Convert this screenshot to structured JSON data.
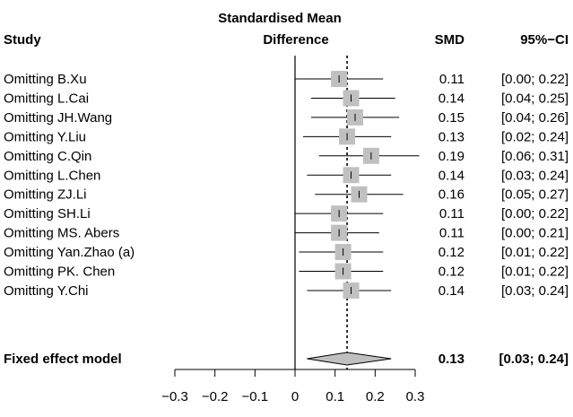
{
  "chart_data": {
    "type": "forest",
    "header": {
      "study": "Study",
      "effect_line1": "Standardised Mean",
      "effect_line2": "Difference",
      "smd": "SMD",
      "ci": "95%−CI"
    },
    "studies": [
      {
        "label": "Omitting B.Xu",
        "smd": 0.11,
        "lower": 0.0,
        "upper": 0.22,
        "smd_text": "0.11",
        "ci_text": "[0.00; 0.22]"
      },
      {
        "label": "Omitting L.Cai",
        "smd": 0.14,
        "lower": 0.04,
        "upper": 0.25,
        "smd_text": "0.14",
        "ci_text": "[0.04; 0.25]"
      },
      {
        "label": "Omitting JH.Wang",
        "smd": 0.15,
        "lower": 0.04,
        "upper": 0.26,
        "smd_text": "0.15",
        "ci_text": "[0.04; 0.26]"
      },
      {
        "label": "Omitting Y.Liu",
        "smd": 0.13,
        "lower": 0.02,
        "upper": 0.24,
        "smd_text": "0.13",
        "ci_text": "[0.02; 0.24]"
      },
      {
        "label": "Omitting C.Qin",
        "smd": 0.19,
        "lower": 0.06,
        "upper": 0.31,
        "smd_text": "0.19",
        "ci_text": "[0.06; 0.31]"
      },
      {
        "label": "Omitting L.Chen",
        "smd": 0.14,
        "lower": 0.03,
        "upper": 0.24,
        "smd_text": "0.14",
        "ci_text": "[0.03; 0.24]"
      },
      {
        "label": "Omitting ZJ.Li",
        "smd": 0.16,
        "lower": 0.05,
        "upper": 0.27,
        "smd_text": "0.16",
        "ci_text": "[0.05; 0.27]"
      },
      {
        "label": "Omitting SH.Li",
        "smd": 0.11,
        "lower": 0.0,
        "upper": 0.22,
        "smd_text": "0.11",
        "ci_text": "[0.00; 0.22]"
      },
      {
        "label": "Omitting MS. Abers",
        "smd": 0.11,
        "lower": 0.0,
        "upper": 0.21,
        "smd_text": "0.11",
        "ci_text": "[0.00; 0.21]"
      },
      {
        "label": "Omitting Yan.Zhao (a)",
        "smd": 0.12,
        "lower": 0.01,
        "upper": 0.22,
        "smd_text": "0.12",
        "ci_text": "[0.01; 0.22]"
      },
      {
        "label": "Omitting PK. Chen",
        "smd": 0.12,
        "lower": 0.01,
        "upper": 0.22,
        "smd_text": "0.12",
        "ci_text": "[0.01; 0.22]"
      },
      {
        "label": "Omitting Y.Chi",
        "smd": 0.14,
        "lower": 0.03,
        "upper": 0.24,
        "smd_text": "0.14",
        "ci_text": "[0.03; 0.24]"
      }
    ],
    "pooled": {
      "label": "Fixed effect model",
      "smd": 0.13,
      "lower": 0.03,
      "upper": 0.24,
      "smd_text": "0.13",
      "ci_text": "[0.03; 0.24]"
    },
    "x_ticks": [
      {
        "value": -0.3,
        "label": "−0.3"
      },
      {
        "value": -0.2,
        "label": "−0.2"
      },
      {
        "value": -0.1,
        "label": "−0.1"
      },
      {
        "value": 0,
        "label": "0"
      },
      {
        "value": 0.1,
        "label": "0.1"
      },
      {
        "value": 0.2,
        "label": "0.2"
      },
      {
        "value": 0.3,
        "label": "0.3"
      }
    ],
    "xlim": [
      -0.3,
      0.3
    ],
    "reference_line": 0,
    "pooled_line": 0.13,
    "colors": {
      "square": "#c0c0c0",
      "diamond": "#c0c0c0",
      "line": "#000000"
    }
  }
}
